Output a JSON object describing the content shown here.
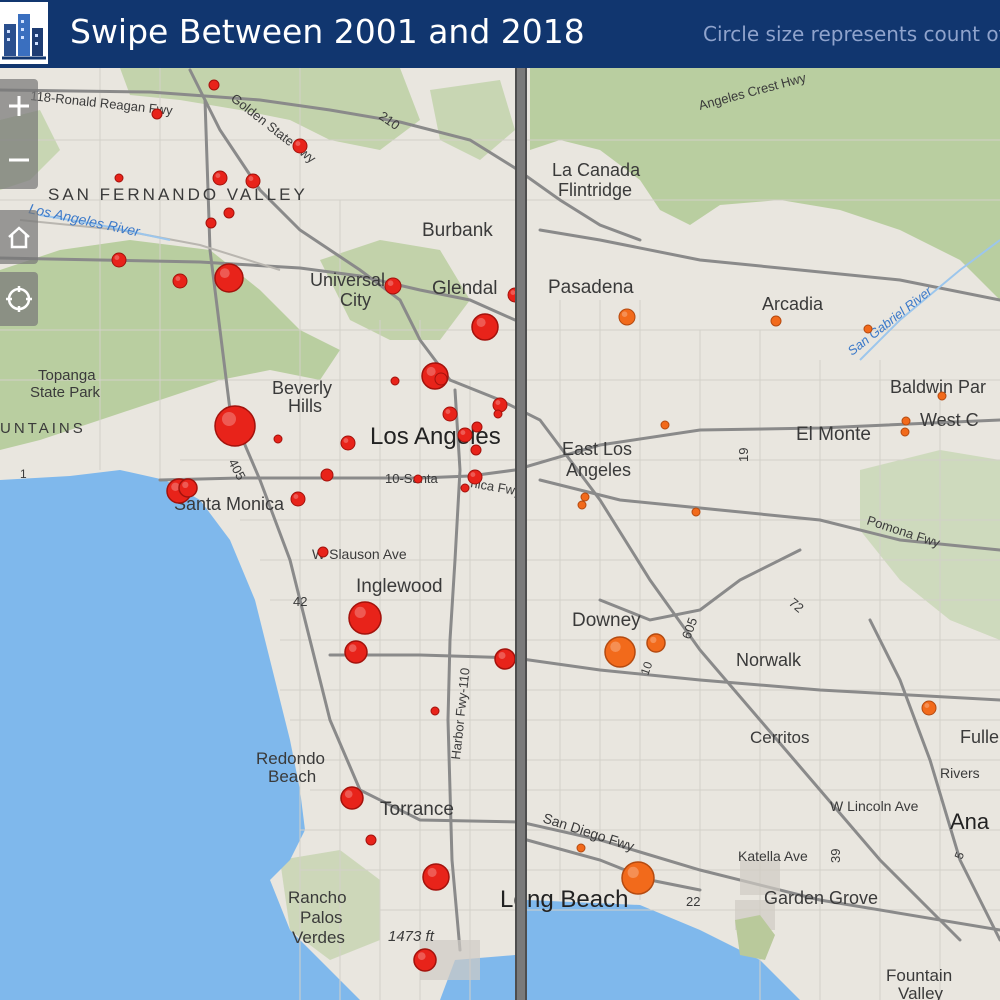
{
  "header": {
    "title": "Swipe Between 2001 and 2018",
    "subtitle": "Circle size represents count of"
  },
  "colors": {
    "header_bg": "#11366f",
    "circle_2001": "#e8231a",
    "circle_2018": "#f26a1b",
    "water": "#7fb8ec",
    "land": "#e9e6df",
    "hills": "#b9cf9e"
  },
  "controls": {
    "zoom_in_icon": "plus-icon",
    "zoom_out_icon": "minus-icon",
    "home_icon": "home-icon",
    "locate_icon": "locate-icon"
  },
  "map_labels": {
    "ronald_reagan_fwy": "118-Ronald Reagan Fwy",
    "golden_state_fwy": "Golden State Fwy",
    "hwy_210": "210",
    "san_fernando_valley": "SAN FERNANDO VALLEY",
    "los_angeles_river": "Los Angeles River",
    "burbank": "Burbank",
    "universal_city_1": "Universal",
    "universal_city_2": "City",
    "glendale": "Glendal",
    "topanga_1": "Topanga",
    "topanga_2": "State Park",
    "beverly_hills_1": "Beverly",
    "beverly_hills_2": "Hills",
    "mountains": "UNTAINS",
    "los_angeles": "Los Angeles",
    "hwy_405": "405",
    "santa_monica_fwy_left": "10-Santa",
    "santa_monica_fwy_right": "nica Fwy",
    "santa_monica": "Santa Monica",
    "slauson": "W Slauson Ave",
    "inglewood": "Inglewood",
    "hwy_42": "42",
    "harbor_fwy": "Harbor Fwy-110",
    "redondo_1": "Redondo",
    "redondo_2": "Beach",
    "torrance": "Torrance",
    "rancho_1": "Rancho",
    "rancho_2": "Palos",
    "rancho_3": "Verdes",
    "elevation": "1473 ft",
    "long_beach_left": "Lo",
    "long_beach_right": "ng Beach",
    "angeles_crest": "Angeles Crest Hwy",
    "la_canada_1": "La Canada",
    "la_canada_2": "Flintridge",
    "pasadena": "Pasadena",
    "arcadia": "Arcadia",
    "san_gabriel_river": "San Gabriel River",
    "baldwin_park": "Baldwin Par",
    "west_covina": "West C",
    "el_monte": "El Monte",
    "east_la_1": "East Los",
    "east_la_2": "Angeles",
    "hwy_19": "19",
    "pomona_fwy": "Pomona Fwy",
    "hwy_72": "72",
    "downey": "Downey",
    "hwy_605": "605",
    "norwalk": "Norwalk",
    "cerritos": "Cerritos",
    "fullerton": "Fullert",
    "riverside": "Rivers",
    "lincoln": "W Lincoln Ave",
    "anaheim": "Ana",
    "san_diego_fwy": "San Diego Fwy",
    "katella": "Katella Ave",
    "hwy_39": "39",
    "hwy_22": "22",
    "garden_grove": "Garden Grove",
    "fountain_1": "Fountain",
    "fountain_2": "Valley",
    "hwy_5": "5",
    "hwy_10_east": "10",
    "hwy_1": "1"
  }
}
